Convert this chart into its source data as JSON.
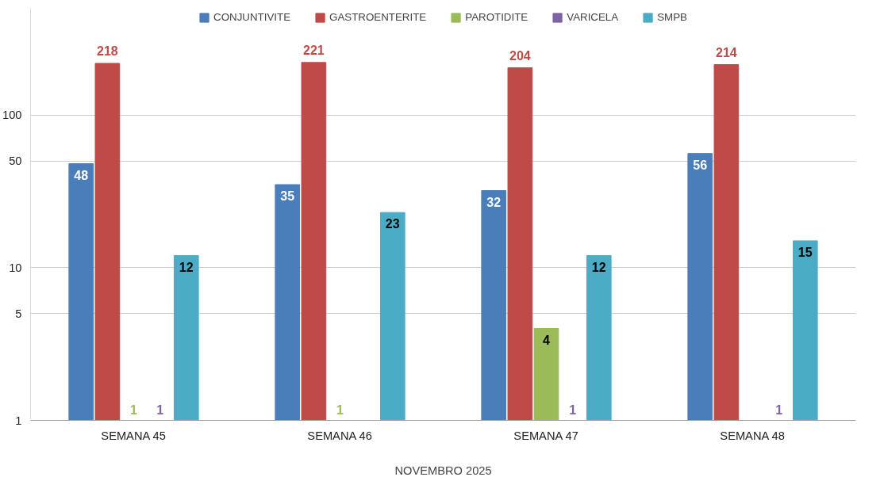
{
  "chart_data": {
    "type": "bar",
    "xlabel": "NOVEMBRO 2025",
    "categories": [
      "SEMANA 45",
      "SEMANA 46",
      "SEMANA 47",
      "SEMANA 48"
    ],
    "series": [
      {
        "name": "CONJUNTIVITE",
        "color": "#4a7ebb",
        "values": [
          48,
          35,
          32,
          56
        ]
      },
      {
        "name": "GASTROENTERITE",
        "color": "#be4b48",
        "values": [
          218,
          221,
          204,
          214
        ]
      },
      {
        "name": "PAROTIDITE",
        "color": "#9bbb59",
        "values": [
          1,
          1,
          4,
          null
        ]
      },
      {
        "name": "VARICELA",
        "color": "#7f62a1",
        "values": [
          1,
          null,
          1,
          1
        ]
      },
      {
        "name": "SMPB",
        "color": "#4bacc6",
        "values": [
          12,
          23,
          12,
          15
        ]
      }
    ],
    "log": true,
    "ylim": [
      1,
      500
    ],
    "yticks": [
      1,
      5,
      10,
      50,
      100
    ],
    "grid": "y",
    "legend": "top",
    "data_labels": true
  }
}
